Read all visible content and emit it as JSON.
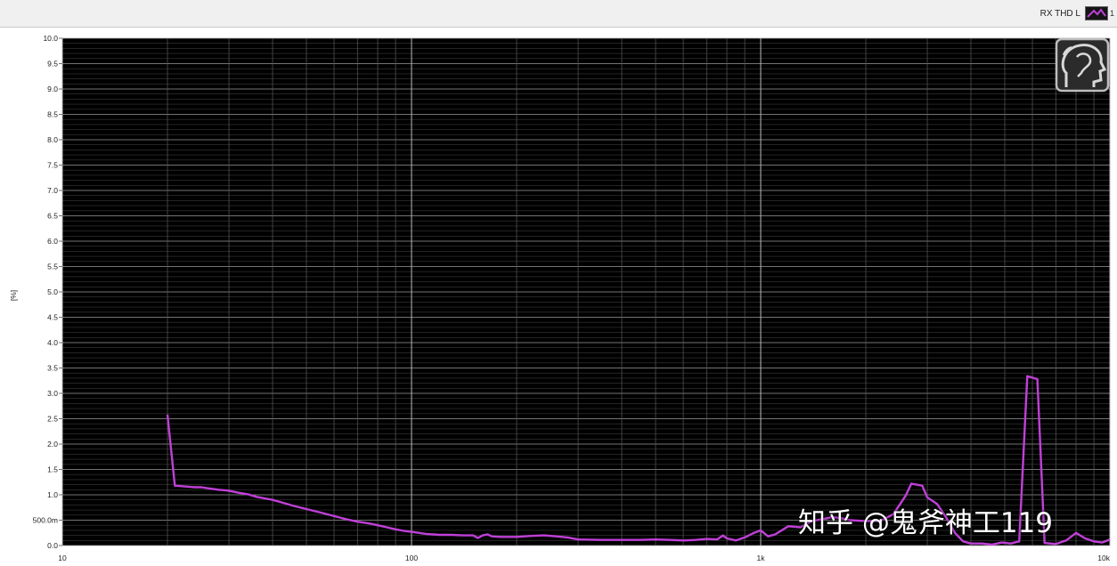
{
  "legend": {
    "label": "RX THD L",
    "extra": "1"
  },
  "watermark": "知乎 @鬼斧神工119",
  "chart_data": {
    "type": "line",
    "title": "",
    "xlabel": "",
    "ylabel": "[%]",
    "x_scale": "log",
    "xlim": [
      10,
      10000
    ],
    "ylim": [
      0,
      10
    ],
    "grid": true,
    "legend_position": "top-right",
    "background": "#000000",
    "line_color": "#c040d8",
    "y_ticks": [
      {
        "value": 10.0,
        "label": "10.0"
      },
      {
        "value": 9.5,
        "label": "9.5"
      },
      {
        "value": 9.0,
        "label": "9.0"
      },
      {
        "value": 8.5,
        "label": "8.5"
      },
      {
        "value": 8.0,
        "label": "8.0"
      },
      {
        "value": 7.5,
        "label": "7.5"
      },
      {
        "value": 7.0,
        "label": "7.0"
      },
      {
        "value": 6.5,
        "label": "6.5"
      },
      {
        "value": 6.0,
        "label": "6.0"
      },
      {
        "value": 5.5,
        "label": "5.5"
      },
      {
        "value": 5.0,
        "label": "5.0"
      },
      {
        "value": 4.5,
        "label": "4.5"
      },
      {
        "value": 4.0,
        "label": "4.0"
      },
      {
        "value": 3.5,
        "label": "3.5"
      },
      {
        "value": 3.0,
        "label": "3.0"
      },
      {
        "value": 2.5,
        "label": "2.5"
      },
      {
        "value": 2.0,
        "label": "2.0"
      },
      {
        "value": 1.5,
        "label": "1.5"
      },
      {
        "value": 1.0,
        "label": "1.0"
      },
      {
        "value": 0.5,
        "label": "500.0m"
      },
      {
        "value": 0.0,
        "label": "0.0"
      }
    ],
    "x_ticks": [
      {
        "value": 10,
        "label": "10"
      },
      {
        "value": 100,
        "label": "100"
      },
      {
        "value": 1000,
        "label": "1k"
      },
      {
        "value": 10000,
        "label": "10k"
      }
    ],
    "series": [
      {
        "name": "RX THD L",
        "points": [
          [
            20,
            2.58
          ],
          [
            21,
            1.18
          ],
          [
            22,
            1.17
          ],
          [
            23,
            1.16
          ],
          [
            24,
            1.15
          ],
          [
            25,
            1.15
          ],
          [
            26,
            1.13
          ],
          [
            28,
            1.1
          ],
          [
            30,
            1.08
          ],
          [
            32,
            1.04
          ],
          [
            34,
            1.01
          ],
          [
            36,
            0.96
          ],
          [
            38,
            0.93
          ],
          [
            40,
            0.9
          ],
          [
            43,
            0.84
          ],
          [
            46,
            0.78
          ],
          [
            50,
            0.72
          ],
          [
            55,
            0.65
          ],
          [
            60,
            0.58
          ],
          [
            65,
            0.52
          ],
          [
            70,
            0.47
          ],
          [
            75,
            0.44
          ],
          [
            80,
            0.4
          ],
          [
            85,
            0.36
          ],
          [
            90,
            0.32
          ],
          [
            95,
            0.29
          ],
          [
            100,
            0.27
          ],
          [
            110,
            0.23
          ],
          [
            120,
            0.21
          ],
          [
            130,
            0.21
          ],
          [
            140,
            0.2
          ],
          [
            150,
            0.2
          ],
          [
            155,
            0.15
          ],
          [
            160,
            0.2
          ],
          [
            165,
            0.22
          ],
          [
            170,
            0.18
          ],
          [
            180,
            0.17
          ],
          [
            200,
            0.17
          ],
          [
            220,
            0.19
          ],
          [
            240,
            0.2
          ],
          [
            260,
            0.18
          ],
          [
            280,
            0.16
          ],
          [
            300,
            0.12
          ],
          [
            350,
            0.11
          ],
          [
            400,
            0.11
          ],
          [
            450,
            0.11
          ],
          [
            500,
            0.12
          ],
          [
            550,
            0.11
          ],
          [
            600,
            0.1
          ],
          [
            650,
            0.11
          ],
          [
            700,
            0.13
          ],
          [
            750,
            0.12
          ],
          [
            780,
            0.2
          ],
          [
            800,
            0.14
          ],
          [
            850,
            0.1
          ],
          [
            900,
            0.16
          ],
          [
            950,
            0.24
          ],
          [
            1000,
            0.3
          ],
          [
            1050,
            0.18
          ],
          [
            1100,
            0.22
          ],
          [
            1200,
            0.38
          ],
          [
            1300,
            0.36
          ],
          [
            1400,
            0.48
          ],
          [
            1500,
            0.52
          ],
          [
            1600,
            0.56
          ],
          [
            1700,
            0.54
          ],
          [
            1800,
            0.5
          ],
          [
            2000,
            0.48
          ],
          [
            2200,
            0.48
          ],
          [
            2400,
            0.62
          ],
          [
            2600,
            0.98
          ],
          [
            2700,
            1.22
          ],
          [
            2900,
            1.18
          ],
          [
            3000,
            0.95
          ],
          [
            3200,
            0.82
          ],
          [
            3400,
            0.55
          ],
          [
            3600,
            0.25
          ],
          [
            3800,
            0.08
          ],
          [
            4000,
            0.04
          ],
          [
            4300,
            0.04
          ],
          [
            4600,
            0.02
          ],
          [
            4900,
            0.06
          ],
          [
            5200,
            0.04
          ],
          [
            5500,
            0.08
          ],
          [
            5800,
            3.34
          ],
          [
            6200,
            3.28
          ],
          [
            6500,
            0.05
          ],
          [
            7000,
            0.03
          ],
          [
            7500,
            0.1
          ],
          [
            8000,
            0.25
          ],
          [
            8500,
            0.14
          ],
          [
            9000,
            0.08
          ],
          [
            9500,
            0.06
          ],
          [
            10000,
            0.12
          ]
        ]
      }
    ]
  }
}
